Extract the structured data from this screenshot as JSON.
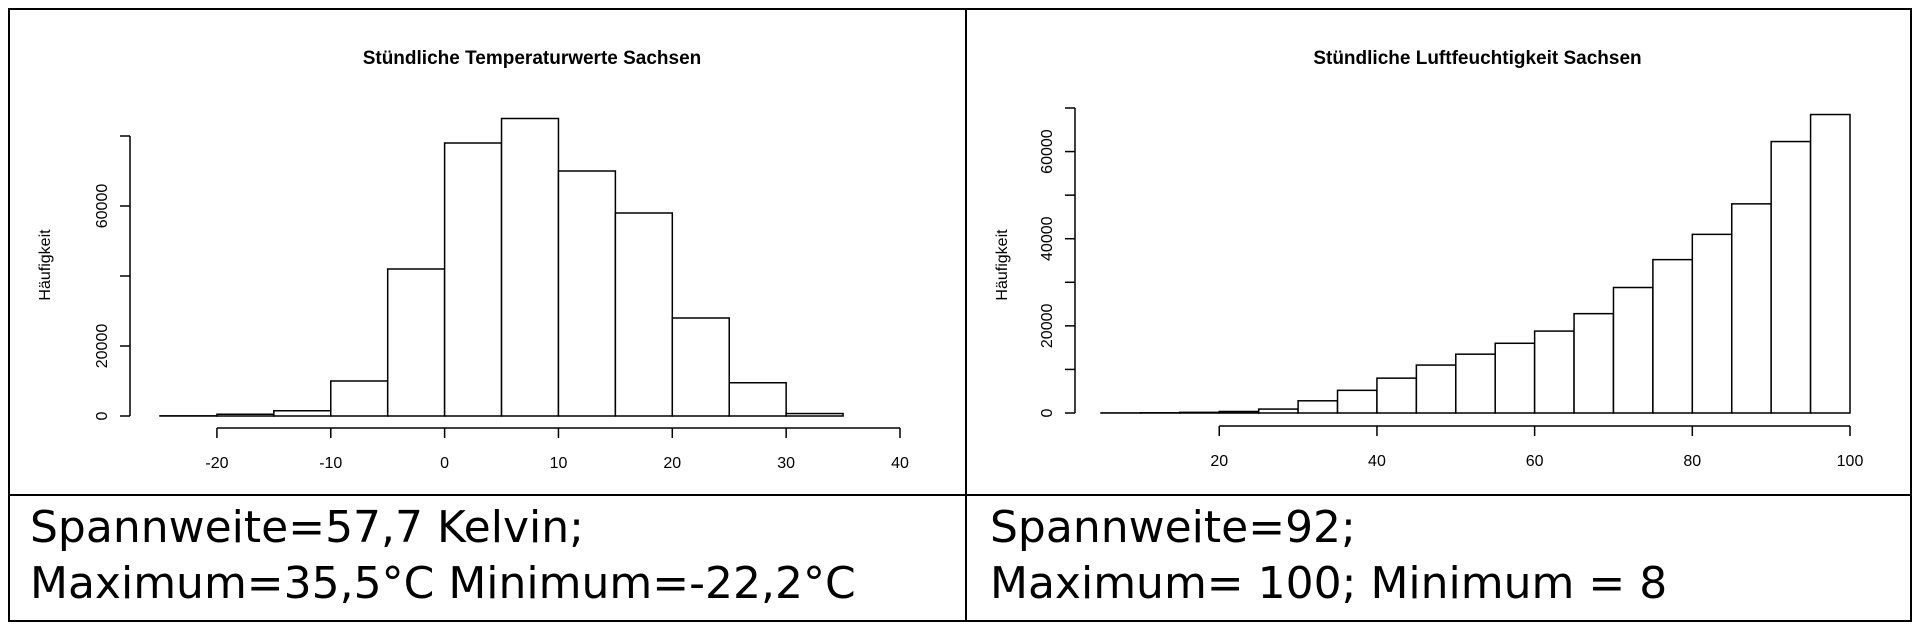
{
  "chart_data": [
    {
      "type": "bar",
      "title": "Stündliche Temperaturwerte Sachsen",
      "xlabel": "",
      "ylabel": "Häufigkeit",
      "bin_edges": [
        -25,
        -20,
        -15,
        -10,
        -5,
        0,
        5,
        10,
        15,
        20,
        25,
        30,
        35
      ],
      "values": [
        50,
        500,
        1500,
        10000,
        42000,
        78000,
        85000,
        70000,
        58000,
        28000,
        9500,
        700
      ],
      "xlim": [
        -25,
        40
      ],
      "x_ticks": [
        -20,
        -10,
        0,
        10,
        20,
        30,
        40
      ],
      "x_tick_labels": [
        "-20",
        "-10",
        "0",
        "10",
        "20",
        "30",
        "40"
      ],
      "ylim": [
        0,
        80000
      ],
      "y_ticks": [
        0,
        20000,
        40000,
        60000,
        80000
      ],
      "y_tick_labels": [
        "0",
        "20000",
        "",
        "60000",
        ""
      ],
      "grid": false
    },
    {
      "type": "bar",
      "title": "Stündliche Luftfeuchtigkeit Sachsen",
      "xlabel": "",
      "ylabel": "Häufigkeit",
      "bin_edges": [
        5,
        10,
        15,
        20,
        25,
        30,
        35,
        40,
        45,
        50,
        55,
        60,
        65,
        70,
        75,
        80,
        85,
        90,
        95,
        100
      ],
      "values": [
        20,
        50,
        150,
        350,
        900,
        2800,
        5200,
        8000,
        11000,
        13500,
        16000,
        18800,
        22800,
        28800,
        35200,
        41000,
        48000,
        62300,
        68500
      ],
      "xlim": [
        5,
        100
      ],
      "x_ticks": [
        20,
        40,
        60,
        80,
        100
      ],
      "x_tick_labels": [
        "20",
        "40",
        "60",
        "80",
        "100"
      ],
      "ylim": [
        0,
        70000
      ],
      "y_ticks": [
        0,
        10000,
        20000,
        30000,
        40000,
        50000,
        60000,
        70000
      ],
      "y_tick_labels": [
        "0",
        "",
        "20000",
        "",
        "40000",
        "",
        "60000",
        ""
      ],
      "grid": false
    }
  ],
  "captions": {
    "left": {
      "line1": "Spannweite=57,7 Kelvin;",
      "line2": "Maximum=35,5°C Minimum=-22,2°C"
    },
    "right": {
      "line1": "Spannweite=92;",
      "line2": "Maximum= 100; Minimum = 8"
    }
  }
}
